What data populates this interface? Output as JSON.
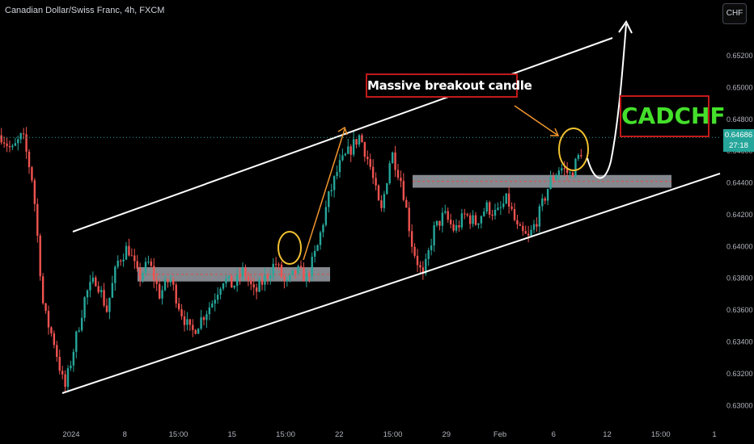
{
  "header": {
    "title": "Canadian Dollar/Swiss Franc, 4h, FXCM",
    "currency_button": "CHF"
  },
  "price_tag": {
    "price": "0.64686",
    "countdown": "27:18"
  },
  "annotations": {
    "breakout_label": "Massive breakout candle",
    "symbol_label": "CADCHF"
  },
  "colors": {
    "background": "#000000",
    "up": "#26a69a",
    "down": "#ef5350",
    "channel": "#ffffff",
    "zone": "#b2b5be",
    "circle": "#f2c230",
    "arrow": "#f0962f",
    "symbol_text": "#44e02b",
    "box_border": "#c21a1a"
  },
  "chart_data": {
    "type": "candlestick",
    "title": "Canadian Dollar/Swiss Franc, 4h, FXCM",
    "ylim": [
      0.6291,
      0.655
    ],
    "price_ticks": [
      "0.65200",
      "0.65000",
      "0.64800",
      "0.64600",
      "0.64400",
      "0.64200",
      "0.64000",
      "0.63800",
      "0.63600",
      "0.63400",
      "0.63200",
      "0.63000"
    ],
    "time_ticks": [
      "2024",
      "8",
      "15:00",
      "15",
      "15:00",
      "22",
      "15:00",
      "29",
      "Feb",
      "6",
      "12",
      "15:00",
      "1"
    ],
    "last_price": 0.64686,
    "grid": false,
    "series": [
      {
        "close_path": [
          0.647,
          0.646,
          0.647,
          0.644,
          0.636,
          0.634,
          0.631,
          0.634,
          0.637,
          0.638,
          0.636,
          0.639,
          0.64,
          0.638,
          0.639,
          0.637,
          0.638,
          0.636,
          0.6345,
          0.6355,
          0.6365,
          0.638,
          0.6375,
          0.6385,
          0.637,
          0.638,
          0.639,
          0.6375,
          0.6385,
          0.638,
          0.64,
          0.643,
          0.645,
          0.646,
          0.647,
          0.645,
          0.642,
          0.646,
          0.644,
          0.64,
          0.638,
          0.641,
          0.642,
          0.641,
          0.642,
          0.6415,
          0.6425,
          0.642,
          0.643,
          0.641,
          0.6405,
          0.642,
          0.644,
          0.645,
          0.6445,
          0.646
        ]
      }
    ],
    "support_zones": [
      {
        "low": 0.6378,
        "high": 0.6387
      },
      {
        "low": 0.6437,
        "high": 0.6445
      }
    ],
    "annotation_points": [
      {
        "label": "Massive breakout candle",
        "price": 0.6469
      }
    ]
  }
}
